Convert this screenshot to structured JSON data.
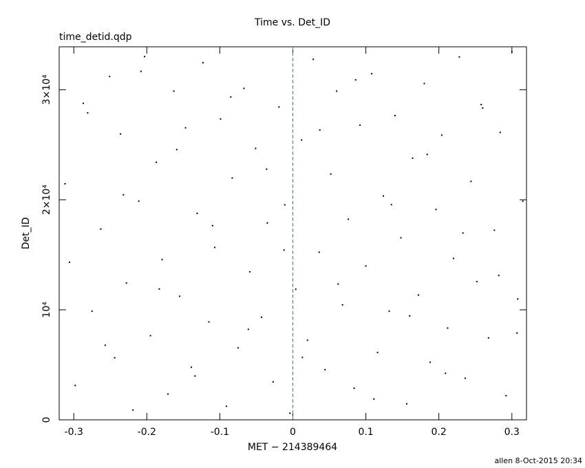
{
  "chart_data": {
    "type": "scatter",
    "title": "Time vs. Det_ID",
    "subtitle": "time_detid.qdp",
    "x_label": "MET − 214389464",
    "y_label": "Det_ID",
    "footer": "allen  8-Oct-2015 20:34",
    "xlim": [
      -0.32,
      0.32
    ],
    "ylim": [
      0,
      33900
    ],
    "xticks": [
      -0.3,
      -0.2,
      -0.1,
      0,
      0.1,
      0.2,
      0.3
    ],
    "yticks": [
      0,
      {
        "value": 10000,
        "label": "10⁴"
      },
      {
        "value": 20000,
        "label": "2×10⁴"
      },
      {
        "value": 30000,
        "label": "3×10⁴"
      }
    ],
    "reference_line": {
      "x": 0,
      "color": "#2a9a9a"
    },
    "x": [
      -0.312,
      -0.298,
      -0.287,
      -0.275,
      -0.263,
      -0.251,
      -0.244,
      -0.236,
      -0.228,
      -0.219,
      -0.211,
      -0.203,
      -0.195,
      -0.187,
      -0.179,
      -0.171,
      -0.163,
      -0.155,
      -0.147,
      -0.139,
      -0.131,
      -0.123,
      -0.115,
      -0.107,
      -0.099,
      -0.091,
      -0.083,
      -0.075,
      -0.067,
      -0.059,
      -0.051,
      -0.043,
      -0.035,
      -0.027,
      -0.019,
      -0.011,
      -0.004,
      0.004,
      0.012,
      0.02,
      0.028,
      0.036,
      0.044,
      0.052,
      0.06,
      0.068,
      0.076,
      0.084,
      0.092,
      0.1,
      0.108,
      0.116,
      0.124,
      0.132,
      0.14,
      0.148,
      0.156,
      0.164,
      0.172,
      0.18,
      0.188,
      0.196,
      0.204,
      0.212,
      0.22,
      0.228,
      0.236,
      0.244,
      0.252,
      0.26,
      0.268,
      0.276,
      0.284,
      0.292,
      0.3,
      0.308,
      0.315,
      -0.306,
      -0.281,
      -0.257,
      -0.232,
      -0.208,
      -0.183,
      -0.159,
      -0.134,
      -0.11,
      -0.085,
      -0.061,
      -0.036,
      -0.012,
      0.013,
      0.037,
      0.062,
      0.086,
      0.111,
      0.135,
      0.16,
      0.184,
      0.209,
      0.233,
      0.258,
      0.282,
      0.307
    ],
    "series": [
      {
        "color": "#000000",
        "values": [
          21450,
          3120,
          28760,
          9870,
          17340,
          31200,
          5640,
          25980,
          12430,
          890,
          19870,
          33010,
          7650,
          23410,
          14560,
          2340,
          29870,
          11230,
          26540,
          4780,
          18760,
          32450,
          8900,
          15670,
          27340,
          1230,
          21980,
          6540,
          30120,
          13450,
          24670,
          9320,
          17890,
          3450,
          28430,
          19540,
          600,
          11870,
          25430,
          7230,
          32760,
          15230,
          4560,
          22340,
          29870,
          10450,
          18230,
          2870,
          26780,
          13980,
          31450,
          6120,
          20340,
          9870,
          27650,
          16540,
          1450,
          23780,
          11340,
          30560,
          5230,
          19120,
          25870,
          8340,
          14670,
          32980,
          3780,
          21670,
          12560,
          28340,
          7450,
          17230,
          26120,
          2190,
          33450,
          10980,
          19870,
          14320,
          27890,
          6780,
          20450,
          31670,
          11890,
          24560,
          3980,
          17650,
          29340,
          8230,
          22780,
          15430,
          5670,
          26340,
          12340,
          30890,
          1890,
          19560,
          9450,
          24120,
          4230,
          16980,
          28650,
          13120,
          7890
        ]
      }
    ]
  }
}
